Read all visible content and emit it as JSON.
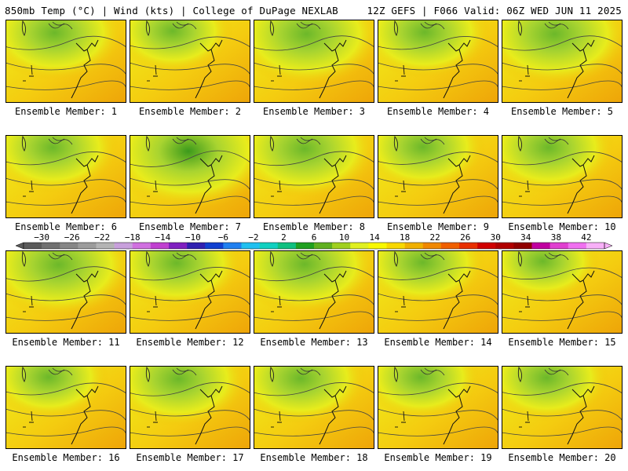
{
  "header": {
    "left": "850mb Temp (°C) | Wind (kts) | College of DuPage NEXLAB",
    "right": "12Z GEFS | F066 Valid: 06Z WED JUN 11 2025"
  },
  "members": [
    {
      "label": "Ensemble Member: 1",
      "green": 0.45
    },
    {
      "label": "Ensemble Member: 2",
      "green": 0.3
    },
    {
      "label": "Ensemble Member: 3",
      "green": 0.55
    },
    {
      "label": "Ensemble Member: 4",
      "green": 0.4
    },
    {
      "label": "Ensemble Member: 5",
      "green": 0.55
    },
    {
      "label": "Ensemble Member: 6",
      "green": 0.4
    },
    {
      "label": "Ensemble Member: 7",
      "green": 0.7
    },
    {
      "label": "Ensemble Member: 8",
      "green": 0.5
    },
    {
      "label": "Ensemble Member: 9",
      "green": 0.35
    },
    {
      "label": "Ensemble Member: 10",
      "green": 0.4
    },
    {
      "label": "Ensemble Member: 11",
      "green": 0.55
    },
    {
      "label": "Ensemble Member: 12",
      "green": 0.4
    },
    {
      "label": "Ensemble Member: 13",
      "green": 0.5
    },
    {
      "label": "Ensemble Member: 14",
      "green": 0.35
    },
    {
      "label": "Ensemble Member: 15",
      "green": 0.25
    },
    {
      "label": "Ensemble Member: 16",
      "green": 0.3
    },
    {
      "label": "Ensemble Member: 17",
      "green": 0.45
    },
    {
      "label": "Ensemble Member: 18",
      "green": 0.4
    },
    {
      "label": "Ensemble Member: 19",
      "green": 0.3
    },
    {
      "label": "Ensemble Member: 20",
      "green": 0.35
    }
  ],
  "colorbar": {
    "labels": [
      "−30",
      "−26",
      "−22",
      "−18",
      "−14",
      "−10",
      "−6",
      "−2",
      "2",
      "6",
      "10",
      "14",
      "18",
      "22",
      "26",
      "30",
      "34",
      "38",
      "42"
    ],
    "colors": [
      "#5a5a5a",
      "#707070",
      "#868686",
      "#9c9c9c",
      "#b4b4b4",
      "#c8a0dc",
      "#d070e0",
      "#c040d0",
      "#8020c0",
      "#3020b0",
      "#1040d0",
      "#2080f0",
      "#20c0f0",
      "#10d0c0",
      "#10c080",
      "#20a020",
      "#60b020",
      "#a0d020",
      "#e0f020",
      "#f8f800",
      "#f8d800",
      "#f0b000",
      "#f08800",
      "#f06000",
      "#e83000",
      "#d00000",
      "#b00000",
      "#900000",
      "#c000a0",
      "#e040d0",
      "#f070f0",
      "#f8b0f8"
    ]
  }
}
